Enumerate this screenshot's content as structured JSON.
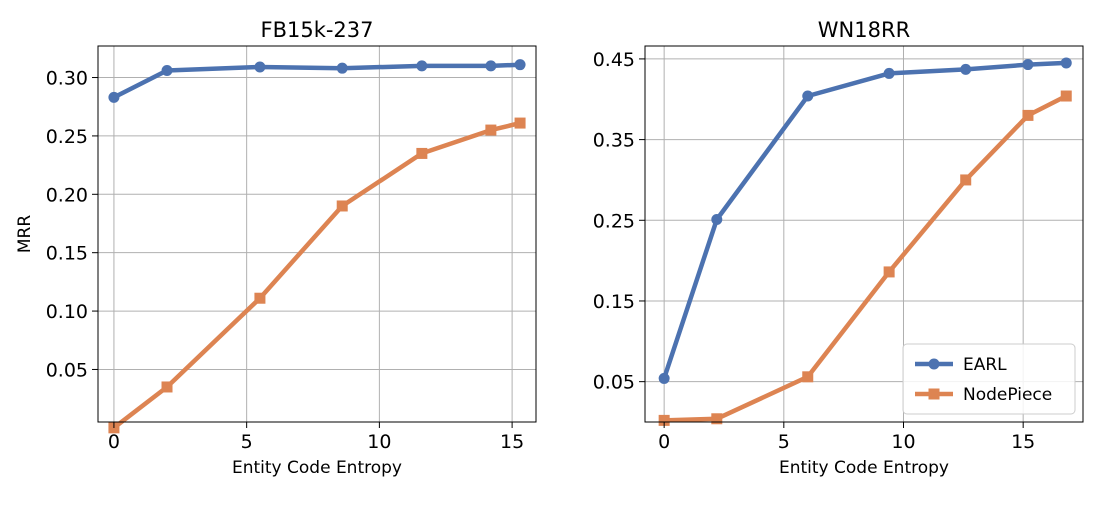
{
  "chart_data": [
    {
      "type": "line",
      "title": "FB15k-237",
      "xlabel": "Entity Code Entropy",
      "ylabel": "MRR",
      "xlim": [
        -0.6,
        15.9
      ],
      "ylim": [
        0.005,
        0.327
      ],
      "xticks": [
        0,
        5,
        10,
        15
      ],
      "yticks": [
        0.05,
        0.1,
        0.15,
        0.2,
        0.25,
        0.3
      ],
      "ytick_labels": [
        "0.05",
        "0.10",
        "0.15",
        "0.20",
        "0.25",
        "0.30"
      ],
      "grid": true,
      "legend": null,
      "series": [
        {
          "name": "EARL",
          "color": "#4c72b0",
          "marker": "circle",
          "x": [
            0,
            2,
            5.5,
            8.6,
            11.6,
            14.2,
            15.3
          ],
          "y": [
            0.283,
            0.306,
            0.309,
            0.308,
            0.31,
            0.31,
            0.311
          ]
        },
        {
          "name": "NodePiece",
          "color": "#dd8452",
          "marker": "square",
          "x": [
            0,
            2,
            5.5,
            8.6,
            11.6,
            14.2,
            15.3
          ],
          "y": [
            0.0,
            0.035,
            0.111,
            0.19,
            0.235,
            0.255,
            0.261
          ]
        }
      ]
    },
    {
      "type": "line",
      "title": "WN18RR",
      "xlabel": "Entity Code Entropy",
      "ylabel": "",
      "xlim": [
        -0.8,
        17.5
      ],
      "ylim": [
        0.0,
        0.466
      ],
      "xticks": [
        0,
        5,
        10,
        15
      ],
      "yticks": [
        0.05,
        0.15,
        0.25,
        0.35,
        0.45
      ],
      "ytick_labels": [
        "0.05",
        "0.15",
        "0.25",
        "0.35",
        "0.45"
      ],
      "grid": true,
      "legend": "lower right",
      "series": [
        {
          "name": "EARL",
          "color": "#4c72b0",
          "marker": "circle",
          "x": [
            0,
            2.2,
            6,
            9.4,
            12.6,
            15.2,
            16.8
          ],
          "y": [
            0.054,
            0.251,
            0.404,
            0.432,
            0.437,
            0.443,
            0.445
          ]
        },
        {
          "name": "NodePiece",
          "color": "#dd8452",
          "marker": "square",
          "x": [
            0,
            2.2,
            6,
            9.4,
            12.6,
            15.2,
            16.8
          ],
          "y": [
            0.002,
            0.004,
            0.056,
            0.186,
            0.3,
            0.38,
            0.404
          ]
        }
      ]
    }
  ]
}
